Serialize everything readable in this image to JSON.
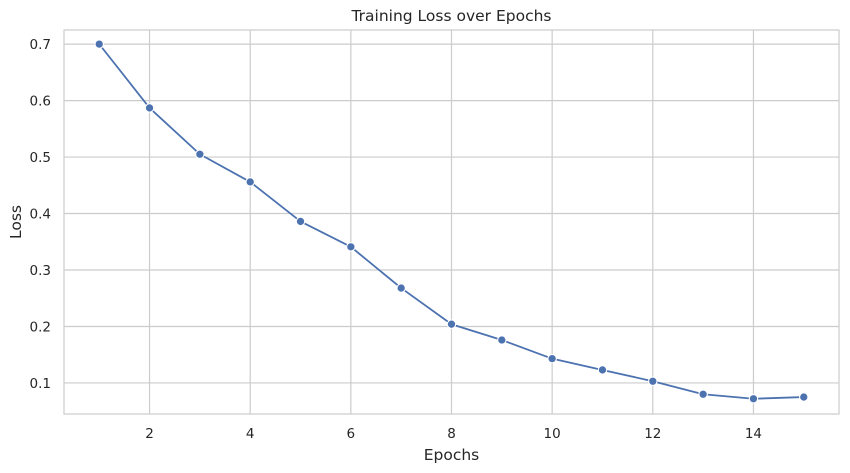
{
  "chart_data": {
    "type": "line",
    "title": "Training Loss over Epochs",
    "xlabel": "Epochs",
    "ylabel": "Loss",
    "xlim": [
      0.3,
      15.7
    ],
    "ylim": [
      0.045,
      0.725
    ],
    "xticks": [
      2,
      4,
      6,
      8,
      10,
      12,
      14
    ],
    "yticks": [
      0.1,
      0.2,
      0.3,
      0.4,
      0.5,
      0.6,
      0.7
    ],
    "grid": true,
    "series": [
      {
        "color": "#4c72b0",
        "marker": "circle",
        "x": [
          1,
          2,
          3,
          4,
          5,
          6,
          7,
          8,
          9,
          10,
          11,
          12,
          13,
          14,
          15
        ],
        "y": [
          0.7,
          0.587,
          0.505,
          0.456,
          0.386,
          0.341,
          0.268,
          0.204,
          0.176,
          0.143,
          0.123,
          0.103,
          0.08,
          0.072,
          0.075
        ]
      }
    ]
  }
}
